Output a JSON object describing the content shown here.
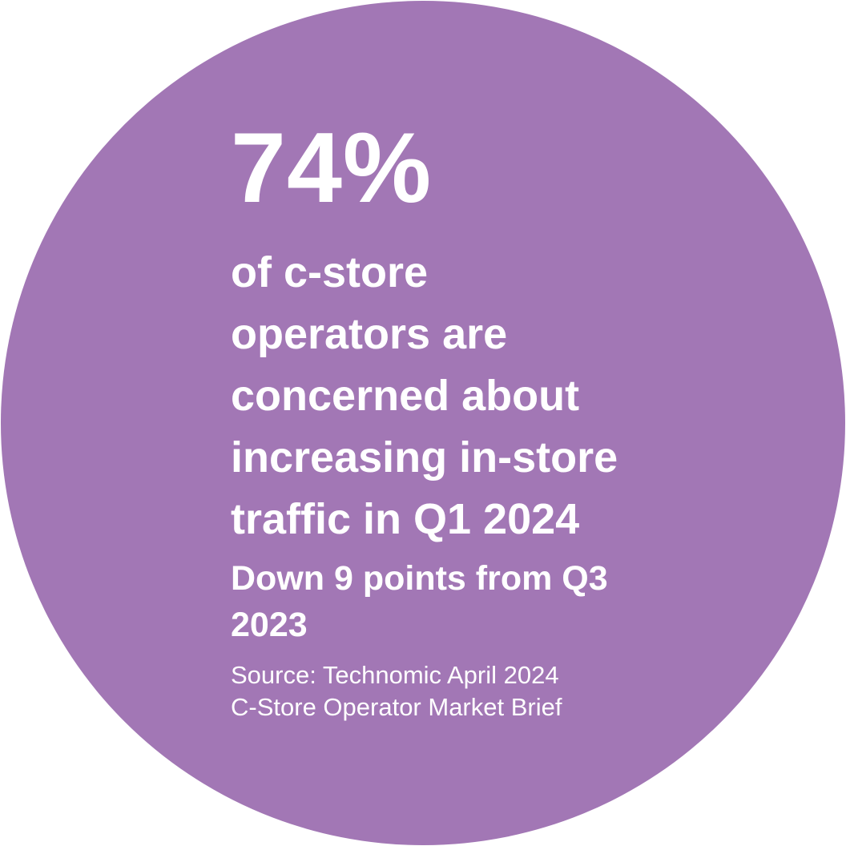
{
  "colors": {
    "circle_fill": "#a277b5",
    "text": "#ffffff",
    "background": "#ffffff"
  },
  "stat": {
    "value": "74%"
  },
  "headline": {
    "lines": [
      "of c-store",
      "operators are",
      "concerned about",
      "increasing in-store",
      "traffic in Q1 2024"
    ]
  },
  "subhead": {
    "lines": [
      "Down 9 points from Q3",
      "2023"
    ]
  },
  "source": {
    "lines": [
      "Source: Technomic April 2024",
      "C-Store Operator Market Brief"
    ]
  }
}
